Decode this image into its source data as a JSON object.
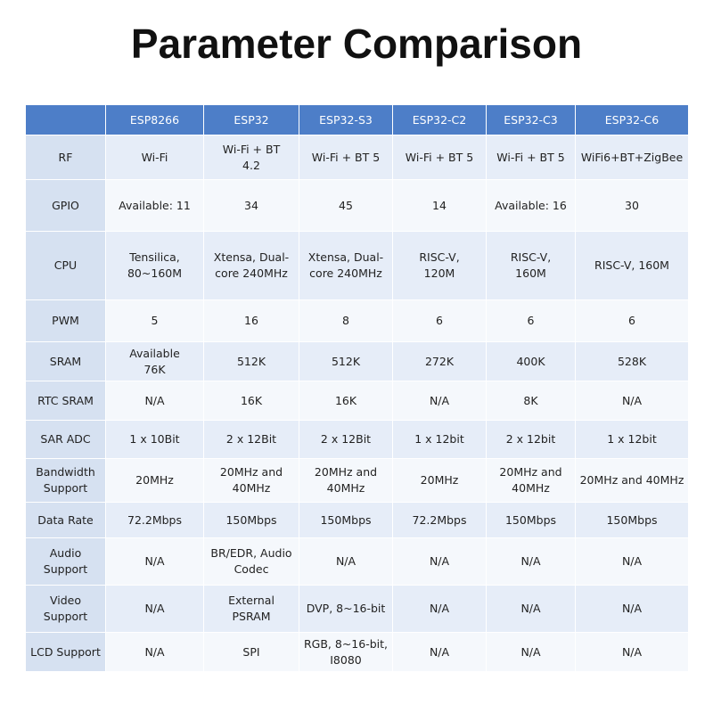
{
  "title": "Parameter Comparison",
  "table": {
    "columns": [
      "ESP8266",
      "ESP32",
      "ESP32-S3",
      "ESP32-C2",
      "ESP32-C3",
      "ESP32-C6"
    ],
    "rows": [
      {
        "label": "RF",
        "cells": [
          "Wi-Fi",
          "Wi-Fi + BT\n4.2",
          "Wi-Fi + BT 5",
          "Wi-Fi + BT 5",
          "Wi-Fi + BT 5",
          "WiFi6+BT+ZigBee"
        ]
      },
      {
        "label": "GPIO",
        "cells": [
          "Available: 11",
          "34",
          "45",
          "14",
          "Available: 16",
          "30"
        ]
      },
      {
        "label": "CPU",
        "cells": [
          "Tensilica,\n80~160M",
          "Xtensa, Dual-\ncore 240MHz",
          "Xtensa, Dual-\ncore 240MHz",
          "RISC-V,\n120M",
          "RISC-V,\n160M",
          "RISC-V, 160M"
        ]
      },
      {
        "label": "PWM",
        "cells": [
          "5",
          "16",
          "8",
          "6",
          "6",
          "6"
        ]
      },
      {
        "label": "SRAM",
        "cells": [
          "Available\n76K",
          "512K",
          "512K",
          "272K",
          "400K",
          "528K"
        ]
      },
      {
        "label": "RTC SRAM",
        "cells": [
          "N/A",
          "16K",
          "16K",
          "N/A",
          "8K",
          "N/A"
        ]
      },
      {
        "label": "SAR ADC",
        "cells": [
          "1 x 10Bit",
          "2 x 12Bit",
          "2 x 12Bit",
          "1 x 12bit",
          "2 x 12bit",
          "1 x 12bit"
        ]
      },
      {
        "label": "Bandwidth\nSupport",
        "cells": [
          "20MHz",
          "20MHz and\n40MHz",
          "20MHz and\n40MHz",
          "20MHz",
          "20MHz and\n40MHz",
          "20MHz and 40MHz"
        ]
      },
      {
        "label": "Data Rate",
        "cells": [
          "72.2Mbps",
          "150Mbps",
          "150Mbps",
          "72.2Mbps",
          "150Mbps",
          "150Mbps"
        ]
      },
      {
        "label": "Audio\nSupport",
        "cells": [
          "N/A",
          "BR/EDR, Audio\nCodec",
          "N/A",
          "N/A",
          "N/A",
          "N/A"
        ]
      },
      {
        "label": "Video\nSupport",
        "cells": [
          "N/A",
          "External\nPSRAM",
          "DVP, 8~16-bit",
          "N/A",
          "N/A",
          "N/A"
        ]
      },
      {
        "label": "LCD Support",
        "cells": [
          "N/A",
          "SPI",
          "RGB, 8~16-bit,\nI8080",
          "N/A",
          "N/A",
          "N/A"
        ]
      }
    ]
  }
}
